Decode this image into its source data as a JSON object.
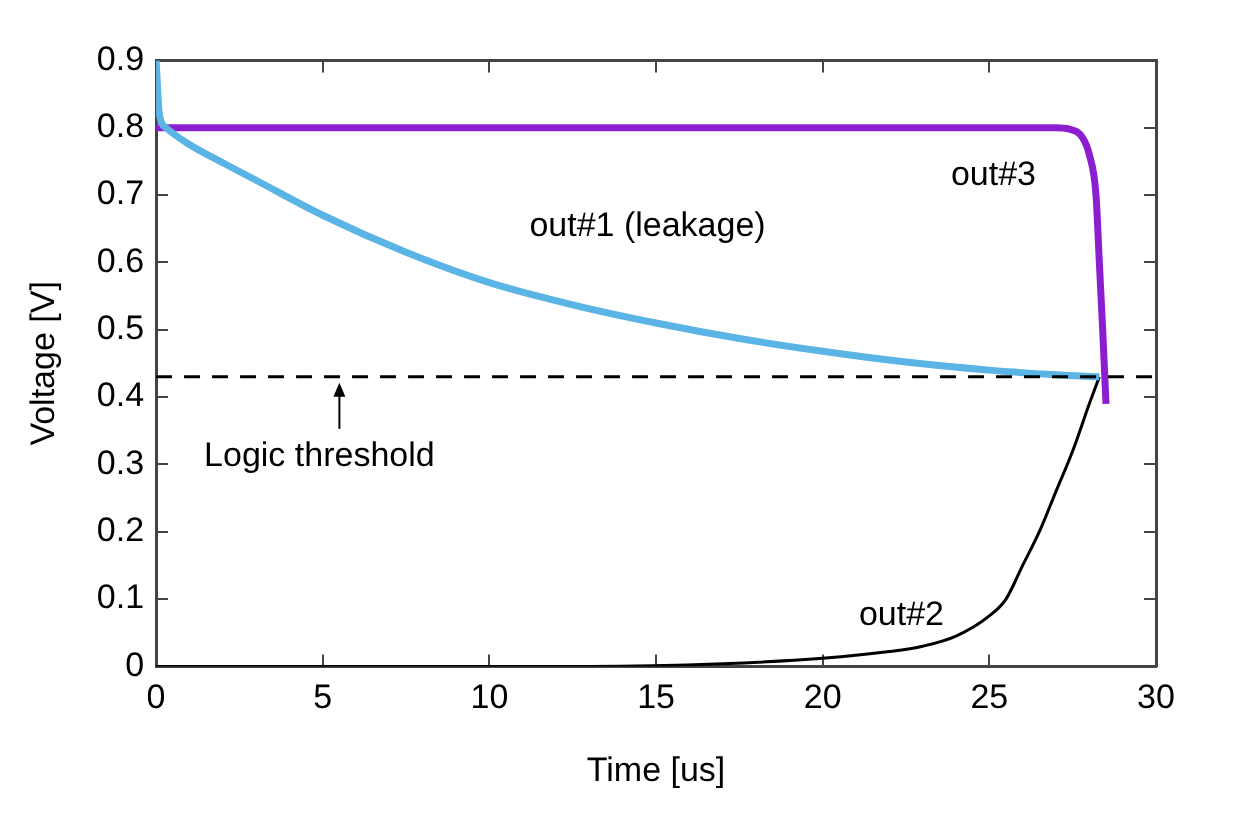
{
  "chart_data": {
    "type": "line",
    "xlabel": "Time [us]",
    "ylabel": "Voltage [V]",
    "xlim": [
      0,
      30
    ],
    "ylim": [
      0,
      0.9
    ],
    "xticks": [
      0,
      5,
      10,
      15,
      20,
      25,
      30
    ],
    "yticks": [
      0,
      0.1,
      0.2,
      0.3,
      0.4,
      0.5,
      0.6,
      0.7,
      0.8,
      0.9
    ],
    "grid": false,
    "legend": false,
    "marker": "none",
    "line_style": "solid",
    "series": [
      {
        "name": "out#1 (leakage)",
        "color": "#5ab4e6",
        "x": [
          0,
          0.1,
          0.3,
          1,
          2,
          3,
          5,
          7.5,
          10,
          12.5,
          15,
          17.5,
          20,
          22.5,
          25,
          27,
          28.3
        ],
        "values": [
          0.9,
          0.82,
          0.8,
          0.775,
          0.748,
          0.722,
          0.67,
          0.615,
          0.57,
          0.537,
          0.51,
          0.487,
          0.468,
          0.452,
          0.44,
          0.433,
          0.43
        ]
      },
      {
        "name": "out#2",
        "color": "#000000",
        "x": [
          0,
          13,
          17,
          20,
          22,
          23,
          24,
          25,
          25.5,
          26,
          26.5,
          27,
          27.5,
          28,
          28.3
        ],
        "values": [
          0,
          0,
          0.004,
          0.012,
          0.022,
          0.03,
          0.045,
          0.075,
          0.1,
          0.15,
          0.2,
          0.26,
          0.32,
          0.39,
          0.43
        ]
      },
      {
        "name": "out#3",
        "color": "#8b1fd0",
        "x": [
          0,
          27,
          27.4,
          27.8,
          28,
          28.2,
          28.3,
          28.4,
          28.5
        ],
        "values": [
          0.8,
          0.8,
          0.798,
          0.785,
          0.76,
          0.7,
          0.6,
          0.5,
          0.39
        ]
      }
    ],
    "ref_lines": [
      {
        "axis": "y",
        "value": 0.43,
        "line_style": "dashed",
        "color": "#000000"
      }
    ],
    "annotations": [
      {
        "text": "Logic threshold",
        "x": 5.5,
        "y": 0.43
      }
    ]
  }
}
